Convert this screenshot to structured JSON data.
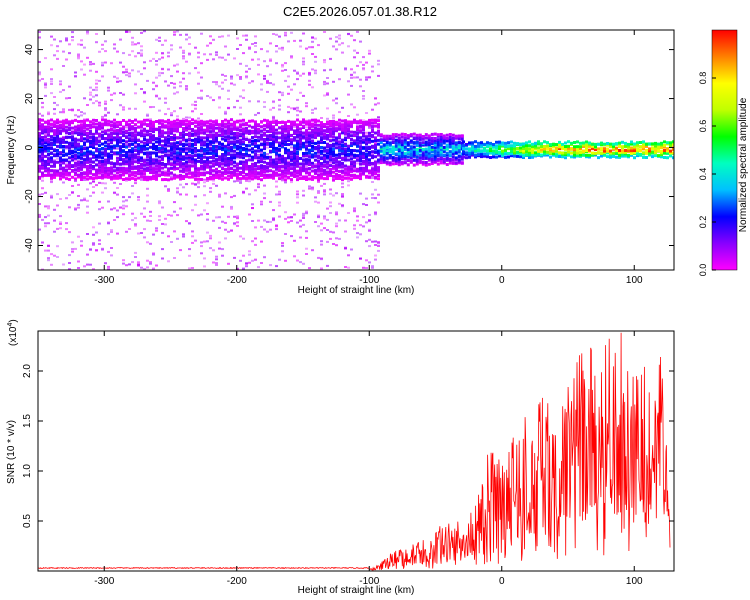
{
  "title": "C2E5.2026.057.01.38.R12",
  "chart_data": [
    {
      "type": "heatmap",
      "xlabel": "Height of straight line (km)",
      "ylabel": "Frequency (Hz)",
      "xlim": [
        -350,
        130
      ],
      "ylim": [
        -50,
        48
      ],
      "xticks": [
        -300,
        -200,
        -100,
        0,
        100
      ],
      "yticks": [
        -40,
        -20,
        0,
        20,
        40
      ],
      "colorbar": {
        "label": "Normalized spectral amplitude",
        "range": [
          0,
          1
        ],
        "ticks": [
          "0.0",
          "0.2",
          "0.4",
          "0.6",
          "0.8"
        ],
        "tick_values": [
          0.0,
          0.2,
          0.4,
          0.6,
          0.8
        ],
        "stops": [
          "#ff00ff",
          "#8800ff",
          "#0000ff",
          "#00c0ff",
          "#00ffc0",
          "#00ff00",
          "#c0ff00",
          "#ffff00",
          "#ff8000",
          "#ff0000"
        ]
      },
      "regions": [
        {
          "x_range": [
            -350,
            -92
          ],
          "scatter_band_hz": [
            -50,
            48
          ],
          "core_band_hz": [
            -12,
            12
          ],
          "peak_amplitude": 0.25
        },
        {
          "x_range": [
            -92,
            -30
          ],
          "core_band_hz": [
            -6,
            6
          ],
          "peak_amplitude": 0.45
        },
        {
          "x_range": [
            -30,
            130
          ],
          "core_band_hz": [
            -3,
            3
          ],
          "peak_amplitude": 0.95
        }
      ]
    },
    {
      "type": "line",
      "xlabel": "Height of straight line (km)",
      "ylabel": "SNR (10 * v/v)",
      "y_scale_label": "(x10",
      "y_scale_exp": "4",
      "xlim": [
        -350,
        130
      ],
      "ylim": [
        0,
        24000
      ],
      "xticks": [
        -300,
        -200,
        -100,
        0,
        100
      ],
      "yticks": [
        5000,
        10000,
        15000,
        20000
      ],
      "ytick_labels": [
        "0.5",
        "1.0",
        "1.5",
        "2.0"
      ],
      "color": "#ff0000",
      "envelope": {
        "x": [
          -350,
          -100,
          -95,
          -90,
          -80,
          -70,
          -60,
          -50,
          -40,
          -30,
          -20,
          -10,
          0,
          10,
          20,
          30,
          40,
          50,
          60,
          70,
          80,
          90,
          100,
          110,
          120,
          127
        ],
        "y": [
          300,
          300,
          500,
          1000,
          2000,
          2300,
          2800,
          4000,
          4500,
          4800,
          6000,
          11000,
          12000,
          13000,
          14500,
          16000,
          17000,
          18000,
          20000,
          21000,
          23500,
          22000,
          19000,
          18500,
          20000,
          15000
        ]
      }
    }
  ]
}
